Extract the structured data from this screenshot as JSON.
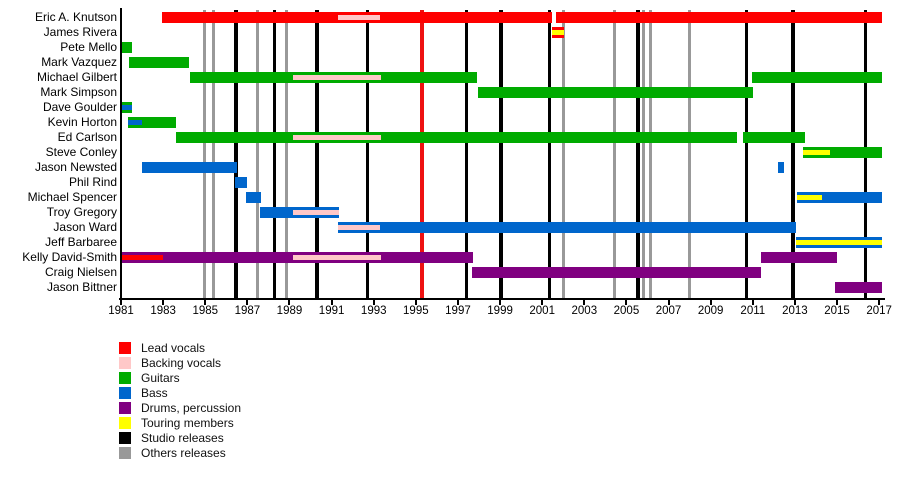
{
  "chart_data": {
    "type": "timeline",
    "x_axis": {
      "unit": "year",
      "min": 1981,
      "max": 2017.15,
      "ticks": [
        1981,
        1983,
        1985,
        1987,
        1989,
        1991,
        1993,
        1995,
        1997,
        1999,
        2001,
        2003,
        2005,
        2007,
        2009,
        2011,
        2013,
        2015,
        2017
      ]
    },
    "legend": [
      {
        "key": "lead",
        "label": "Lead vocals",
        "color": "#FE0000"
      },
      {
        "key": "backing",
        "label": "Backing vocals",
        "color": "#FFC8C8"
      },
      {
        "key": "guitars",
        "label": "Guitars",
        "color": "#00AB00"
      },
      {
        "key": "bass",
        "label": "Bass",
        "color": "#0066CC"
      },
      {
        "key": "drums",
        "label": "Drums, percussion",
        "color": "#800080"
      },
      {
        "key": "touring",
        "label": "Touring members",
        "color": "#FFFF00"
      },
      {
        "key": "studio",
        "label": "Studio releases",
        "color": "#000000"
      },
      {
        "key": "others",
        "label": "Others releases",
        "color": "#999999"
      }
    ],
    "members": [
      {
        "name": "Eric A. Knutson",
        "segments": [
          {
            "from": 1982.95,
            "to": 2001.45,
            "role": "lead"
          },
          {
            "from": 2001.65,
            "to": 2017.12,
            "role": "lead"
          }
        ],
        "stripes": [
          {
            "from": 1991.3,
            "to": 1993.3,
            "role": "backing"
          }
        ]
      },
      {
        "name": "James Rivera",
        "segments": [
          {
            "from": 2001.45,
            "to": 2002.05,
            "role": "lead"
          }
        ],
        "stripes": [
          {
            "from": 2001.45,
            "to": 2002.05,
            "role": "touring"
          }
        ]
      },
      {
        "name": "Pete Mello",
        "segments": [
          {
            "from": 1981.0,
            "to": 1981.5,
            "role": "guitars"
          }
        ],
        "stripes": []
      },
      {
        "name": "Mark Vazquez",
        "segments": [
          {
            "from": 1981.4,
            "to": 1984.25,
            "role": "guitars"
          }
        ],
        "stripes": []
      },
      {
        "name": "Michael Gilbert",
        "segments": [
          {
            "from": 1984.3,
            "to": 1997.9,
            "role": "guitars"
          },
          {
            "from": 2010.95,
            "to": 2017.12,
            "role": "guitars"
          }
        ],
        "stripes": [
          {
            "from": 1989.15,
            "to": 1993.35,
            "role": "backing"
          }
        ]
      },
      {
        "name": "Mark Simpson",
        "segments": [
          {
            "from": 1997.95,
            "to": 2011.0,
            "role": "guitars"
          }
        ],
        "stripes": []
      },
      {
        "name": "Dave Goulder",
        "segments": [
          {
            "from": 1981.0,
            "to": 1981.5,
            "role": "guitars"
          }
        ],
        "stripes": [
          {
            "from": 1981.0,
            "to": 1981.5,
            "role": "bass"
          }
        ]
      },
      {
        "name": "Kevin Horton",
        "segments": [
          {
            "from": 1981.35,
            "to": 1983.6,
            "role": "guitars"
          }
        ],
        "stripes": [
          {
            "from": 1981.35,
            "to": 1982.0,
            "role": "bass"
          }
        ]
      },
      {
        "name": "Ed Carlson",
        "segments": [
          {
            "from": 1983.6,
            "to": 2010.25,
            "role": "guitars"
          },
          {
            "from": 2010.55,
            "to": 2013.5,
            "role": "guitars"
          }
        ],
        "stripes": [
          {
            "from": 1989.15,
            "to": 1993.35,
            "role": "backing"
          }
        ]
      },
      {
        "name": "Steve Conley",
        "segments": [
          {
            "from": 2013.4,
            "to": 2017.12,
            "role": "guitars"
          }
        ],
        "stripes": [
          {
            "from": 2013.4,
            "to": 2014.65,
            "role": "touring"
          }
        ]
      },
      {
        "name": "Jason Newsted",
        "segments": [
          {
            "from": 1982.0,
            "to": 1986.5,
            "role": "bass"
          },
          {
            "from": 2012.2,
            "to": 2012.5,
            "role": "bass"
          }
        ],
        "stripes": []
      },
      {
        "name": "Phil Rind",
        "segments": [
          {
            "from": 1986.4,
            "to": 1987.0,
            "role": "bass"
          }
        ],
        "stripes": []
      },
      {
        "name": "Michael Spencer",
        "segments": [
          {
            "from": 1986.95,
            "to": 1987.65,
            "role": "bass"
          },
          {
            "from": 2013.1,
            "to": 2017.12,
            "role": "bass"
          }
        ],
        "stripes": [
          {
            "from": 2013.1,
            "to": 2014.3,
            "role": "touring"
          }
        ]
      },
      {
        "name": "Troy Gregory",
        "segments": [
          {
            "from": 1987.6,
            "to": 1991.35,
            "role": "bass"
          }
        ],
        "stripes": [
          {
            "from": 1989.15,
            "to": 1991.35,
            "role": "backing"
          }
        ]
      },
      {
        "name": "Jason Ward",
        "segments": [
          {
            "from": 1991.3,
            "to": 2013.05,
            "role": "bass"
          }
        ],
        "stripes": [
          {
            "from": 1991.3,
            "to": 1993.3,
            "role": "backing"
          }
        ]
      },
      {
        "name": "Jeff Barbaree",
        "segments": [
          {
            "from": 2013.05,
            "to": 2017.12,
            "role": "bass"
          }
        ],
        "stripes": [
          {
            "from": 2013.05,
            "to": 2017.12,
            "role": "touring"
          }
        ]
      },
      {
        "name": "Kelly David-Smith",
        "segments": [
          {
            "from": 1981.0,
            "to": 1997.7,
            "role": "drums"
          },
          {
            "from": 2011.4,
            "to": 2015.0,
            "role": "drums"
          }
        ],
        "stripes": [
          {
            "from": 1981.0,
            "to": 1983.0,
            "role": "lead"
          },
          {
            "from": 1989.15,
            "to": 1993.35,
            "role": "backing"
          }
        ]
      },
      {
        "name": "Craig Nielsen",
        "segments": [
          {
            "from": 1997.65,
            "to": 2011.4,
            "role": "drums"
          }
        ],
        "stripes": []
      },
      {
        "name": "Jason Bittner",
        "segments": [
          {
            "from": 2014.9,
            "to": 2017.12,
            "role": "drums"
          }
        ],
        "stripes": []
      }
    ],
    "releases": {
      "studio_years": [
        1986.45,
        1988.3,
        1990.3,
        1992.7,
        1997.4,
        1999.05,
        2001.35,
        2005.55,
        2010.7,
        2012.9,
        2016.35
      ],
      "others_years": [
        1984.95,
        1985.4,
        1987.5,
        1988.85,
        2002.0,
        2004.45,
        2005.8,
        2006.15,
        2008.0
      ],
      "special_years": [
        1995.3
      ],
      "special_color": "#EE1111"
    }
  }
}
